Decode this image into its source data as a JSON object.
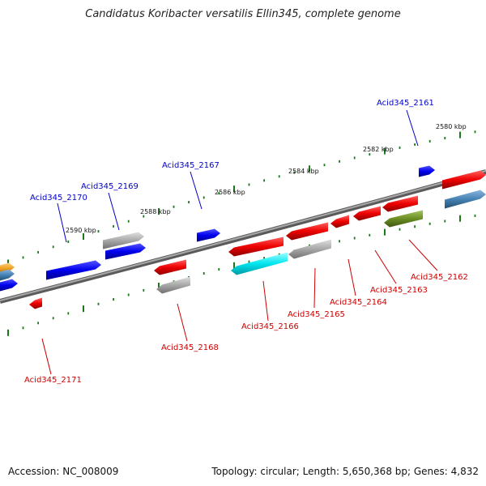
{
  "title": "Candidatus Koribacter versatilis Ellin345, complete genome",
  "footer": {
    "accession": "Accession: NC_008009",
    "stats": "Topology: circular; Length: 5,650,368 bp; Genes: 4,832"
  },
  "colors": {
    "forward_label": "#0000cc",
    "reverse_label": "#cc0000",
    "tick": "#1a7a1a",
    "backbone": "#7a7a7a"
  },
  "scale_ticks": [
    {
      "label": "2580 kbp"
    },
    {
      "label": "2582 kbp"
    },
    {
      "label": "2584 kbp"
    },
    {
      "label": "2586 kbp"
    },
    {
      "label": "2588 kbp"
    },
    {
      "label": "2590 kbp"
    }
  ],
  "gene_labels": [
    {
      "label": "Acid345_2161",
      "strand": "forward"
    },
    {
      "label": "Acid345_2167",
      "strand": "forward"
    },
    {
      "label": "Acid345_2169",
      "strand": "forward"
    },
    {
      "label": "Acid345_2170",
      "strand": "forward"
    },
    {
      "label": "Acid345_2162",
      "strand": "reverse"
    },
    {
      "label": "Acid345_2163",
      "strand": "reverse"
    },
    {
      "label": "Acid345_2164",
      "strand": "reverse"
    },
    {
      "label": "Acid345_2165",
      "strand": "reverse"
    },
    {
      "label": "Acid345_2166",
      "strand": "reverse"
    },
    {
      "label": "Acid345_2168",
      "strand": "reverse"
    },
    {
      "label": "Acid345_2171",
      "strand": "reverse"
    }
  ],
  "feature_colors": {
    "blue": "#0000ee",
    "gray": "#a8a8a8",
    "red": "#ee0000",
    "cyan": "#00e5f0",
    "olive": "#6b8e23",
    "steelblue": "#4682b4",
    "orange": "#f0a020"
  }
}
